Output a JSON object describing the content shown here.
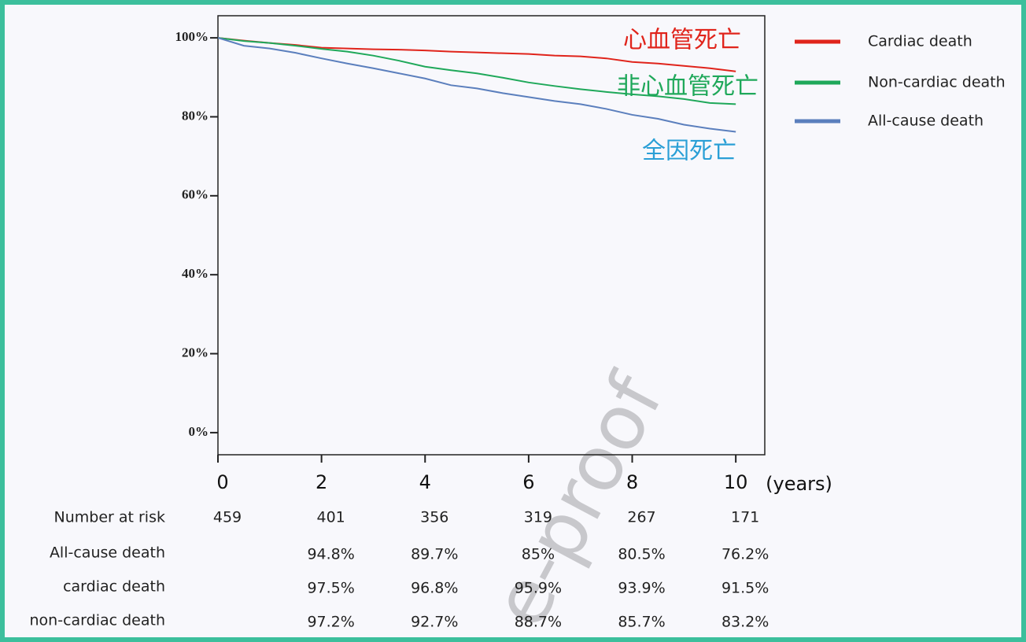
{
  "chart_data": {
    "type": "line",
    "x": [
      0,
      0.5,
      1,
      1.5,
      2,
      2.5,
      3,
      3.5,
      4,
      4.5,
      5,
      5.5,
      6,
      6.5,
      7,
      7.5,
      8,
      8.5,
      9,
      9.5,
      10
    ],
    "series": [
      {
        "name": "Cardiac death",
        "color": "#e0241b",
        "values": [
          100,
          99.3,
          98.7,
          98.2,
          97.5,
          97.3,
          97.1,
          97,
          96.8,
          96.5,
          96.3,
          96.1,
          95.9,
          95.5,
          95.3,
          94.8,
          93.9,
          93.5,
          92.9,
          92.3,
          91.5
        ]
      },
      {
        "name": "Non-cardiac death",
        "color": "#1fa85a",
        "values": [
          100,
          99.2,
          98.7,
          98,
          97.2,
          96.5,
          95.5,
          94.2,
          92.7,
          91.8,
          91,
          89.9,
          88.7,
          87.8,
          87,
          86.3,
          85.7,
          85.2,
          84.5,
          83.5,
          83.2
        ]
      },
      {
        "name": "All-cause death",
        "color": "#5b7fbd",
        "values": [
          100,
          98,
          97.3,
          96.2,
          94.8,
          93.5,
          92.3,
          91,
          89.7,
          88,
          87.2,
          86,
          85,
          84,
          83.2,
          82,
          80.5,
          79.5,
          78,
          77,
          76.2
        ]
      }
    ],
    "xlim": [
      0,
      10.56
    ],
    "ylim": [
      -5.6,
      105.6
    ],
    "xticks": [
      0,
      2,
      4,
      6,
      8,
      10
    ],
    "yticks": [
      {
        "value": 0,
        "label": "0%"
      },
      {
        "value": 20,
        "label": "20%"
      },
      {
        "value": 40,
        "label": "40%"
      },
      {
        "value": 60,
        "label": "60%"
      },
      {
        "value": 80,
        "label": "80%"
      },
      {
        "value": 100,
        "label": "100%"
      }
    ],
    "x_label": "(years)",
    "legend": "right",
    "annotations": [
      {
        "text": "心血管死亡",
        "color": "#e0241b"
      },
      {
        "text": "非心血管死亡",
        "color": "#1fa85a"
      },
      {
        "text": "全因死亡",
        "color": "#2a9fd6"
      }
    ],
    "risk_table": [
      {
        "label": "Number at risk",
        "values": [
          "459",
          "401",
          "356",
          "319",
          "267",
          "171"
        ]
      },
      {
        "label": "All-cause death",
        "values": [
          "94.8%",
          "89.7%",
          "85%",
          "80.5%",
          "76.2%"
        ]
      },
      {
        "label": "cardiac death",
        "values": [
          "97.5%",
          "96.8%",
          "95.9%",
          "93.9%",
          "91.5%"
        ]
      },
      {
        "label": "non-cardiac death",
        "values": [
          "97.2%",
          "92.7%",
          "88.7%",
          "85.7%",
          "83.2%"
        ]
      }
    ],
    "watermark": "e-proof"
  }
}
